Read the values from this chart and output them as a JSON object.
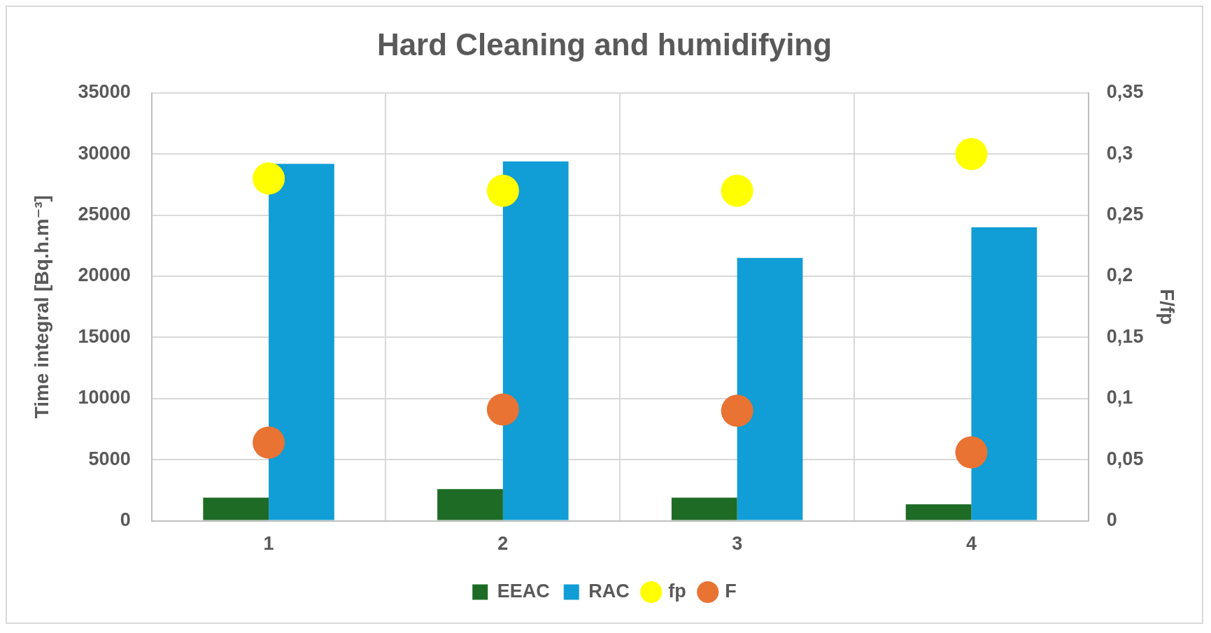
{
  "chart_data": {
    "type": "bar",
    "title": "Hard Cleaning and humidifying",
    "ylabel": "Time integral [Bq.h.m⁻³]",
    "y2label": "F/fp",
    "categories": [
      "1",
      "2",
      "3",
      "4"
    ],
    "series": [
      {
        "name": "EEAC",
        "color": "#1e6b25",
        "values": [
          1900,
          2600,
          1900,
          1350
        ]
      },
      {
        "name": "RAC",
        "color": "#119dd5",
        "values": [
          29200,
          29400,
          21500,
          24000
        ]
      },
      {
        "name": "fp",
        "type": "scatter",
        "axis": "y2",
        "marker": "circle",
        "color": "#ffff00",
        "x": [
          "1",
          "2",
          "3",
          "4"
        ],
        "values": [
          0.28,
          0.27,
          0.27,
          0.3
        ]
      },
      {
        "name": "F",
        "type": "scatter",
        "axis": "y2",
        "marker": "circle",
        "color": "#e87333",
        "x": [
          "1",
          "2",
          "3",
          "4"
        ],
        "values": [
          0.064,
          0.091,
          0.09,
          0.056
        ]
      }
    ],
    "ylim": [
      0,
      35000
    ],
    "yticks": [
      0,
      5000,
      10000,
      15000,
      20000,
      25000,
      30000,
      35000
    ],
    "y2lim": [
      0,
      0.35
    ],
    "y2ticks": [
      {
        "value": 0,
        "label": "0"
      },
      {
        "value": 0.05,
        "label": "0,05"
      },
      {
        "value": 0.1,
        "label": "0,1"
      },
      {
        "value": 0.15,
        "label": "0,15"
      },
      {
        "value": 0.2,
        "label": "0,2"
      },
      {
        "value": 0.25,
        "label": "0,25"
      },
      {
        "value": 0.3,
        "label": "0,3"
      },
      {
        "value": 0.35,
        "label": "0,35"
      }
    ],
    "grid": true,
    "legend": "bottom"
  }
}
